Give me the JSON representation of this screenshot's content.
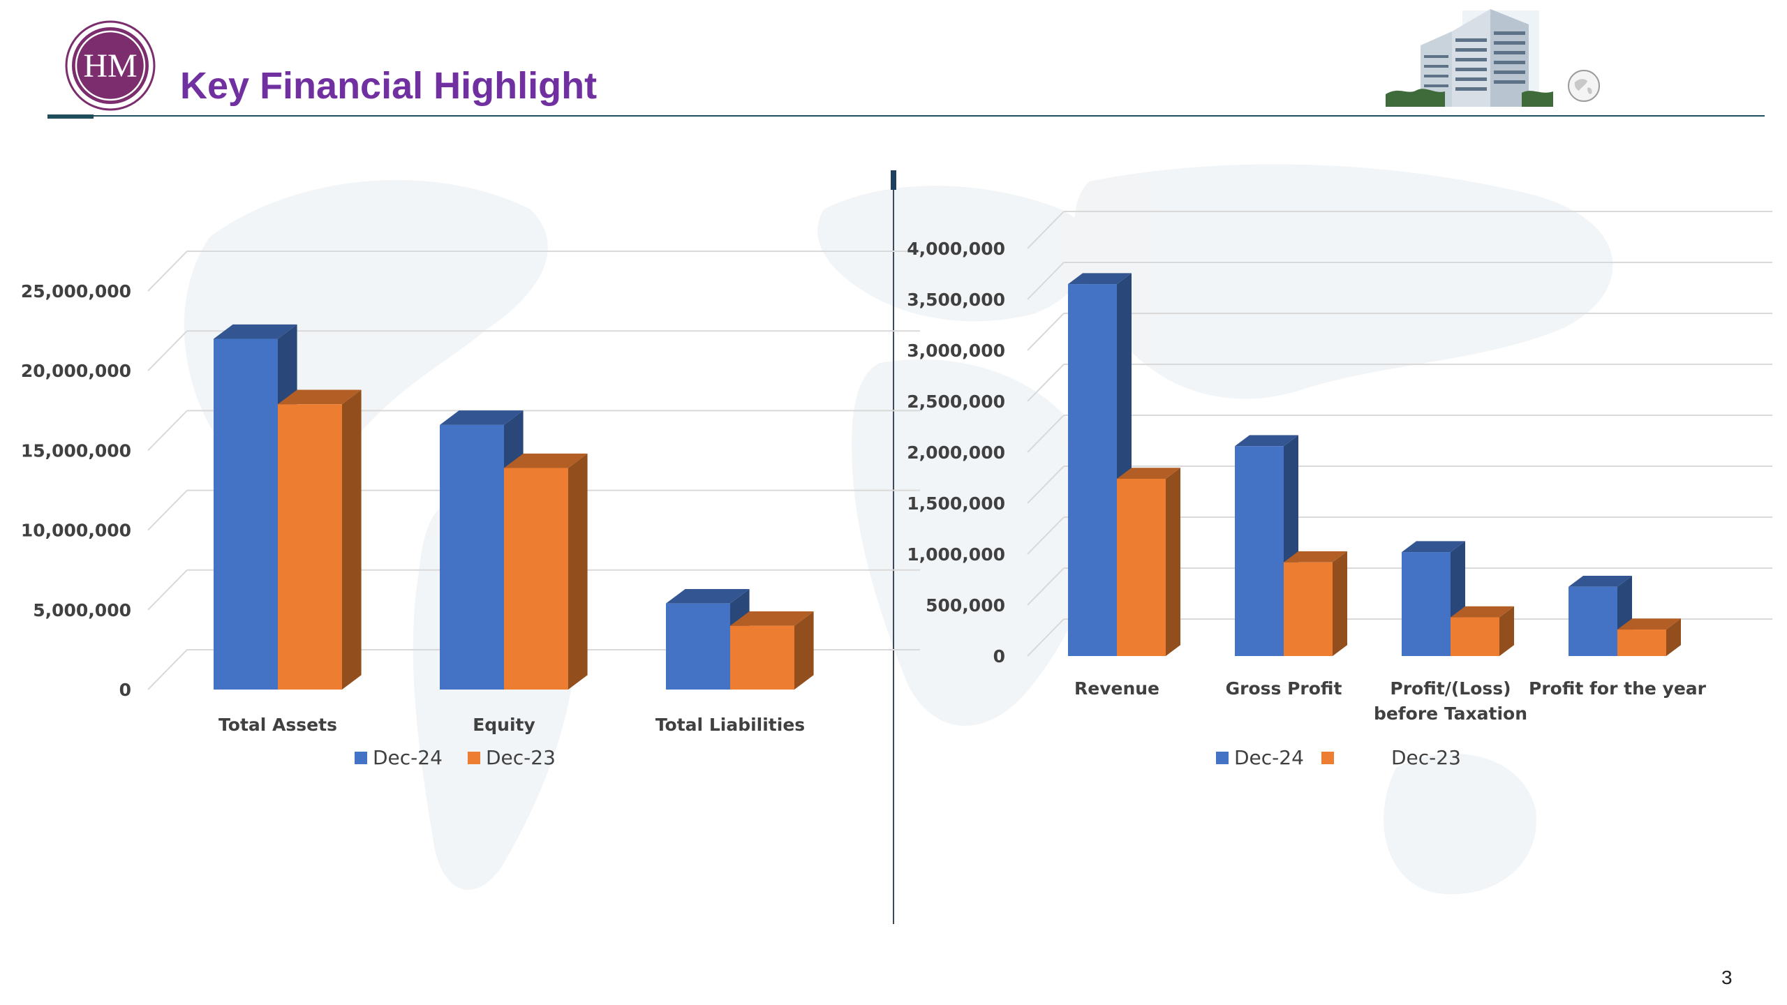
{
  "header": {
    "logo_text": "HM",
    "title": "Key Financial Highlight"
  },
  "page_number": "3",
  "colors": {
    "title": "#7030A0",
    "series_dec24": "#4472C4",
    "series_dec23": "#ED7D31",
    "rule": "#1F4E5A"
  },
  "icons": [
    "hm-logo-icon",
    "building-photo-icon",
    "globe-icon"
  ],
  "chart_data": [
    {
      "type": "bar",
      "style": "3d-clustered-column",
      "categories": [
        "Total Assets",
        "Equity",
        "Total Liabilities"
      ],
      "series": [
        {
          "name": "Dec-24",
          "color": "#4472C4",
          "values": [
            22000000,
            16600000,
            5400000
          ]
        },
        {
          "name": "Dec-23",
          "color": "#ED7D31",
          "values": [
            17900000,
            13900000,
            4000000
          ]
        }
      ],
      "ylim": [
        0,
        25000000
      ],
      "yticks": [
        0,
        5000000,
        10000000,
        15000000,
        20000000,
        25000000
      ],
      "ytick_labels": [
        "0",
        "5,000,000",
        "10,000,000",
        "15,000,000",
        "20,000,000",
        "25,000,000"
      ],
      "grid": true,
      "legend": "bottom"
    },
    {
      "type": "bar",
      "style": "3d-clustered-column",
      "categories": [
        "Revenue",
        "Gross Profit",
        "Profit/(Loss) before Taxation",
        "Profit for the year"
      ],
      "category_lines": [
        [
          "Revenue"
        ],
        [
          "Gross Profit"
        ],
        [
          "Profit/(Loss)",
          "before Taxation"
        ],
        [
          "Profit for the year"
        ]
      ],
      "series": [
        {
          "name": "Dec-24",
          "color": "#4472C4",
          "values": [
            3650000,
            2060000,
            1020000,
            680000
          ]
        },
        {
          "name": "Dec-23",
          "color": "#ED7D31",
          "values": [
            1740000,
            920000,
            380000,
            260000
          ]
        }
      ],
      "ylim": [
        0,
        4000000
      ],
      "yticks": [
        0,
        500000,
        1000000,
        1500000,
        2000000,
        2500000,
        3000000,
        3500000,
        4000000
      ],
      "ytick_labels": [
        "0",
        "500,000",
        "1,000,000",
        "1,500,000",
        "2,000,000",
        "2,500,000",
        "3,000,000",
        "3,500,000",
        "4,000,000"
      ],
      "grid": true,
      "legend": "bottom"
    }
  ]
}
